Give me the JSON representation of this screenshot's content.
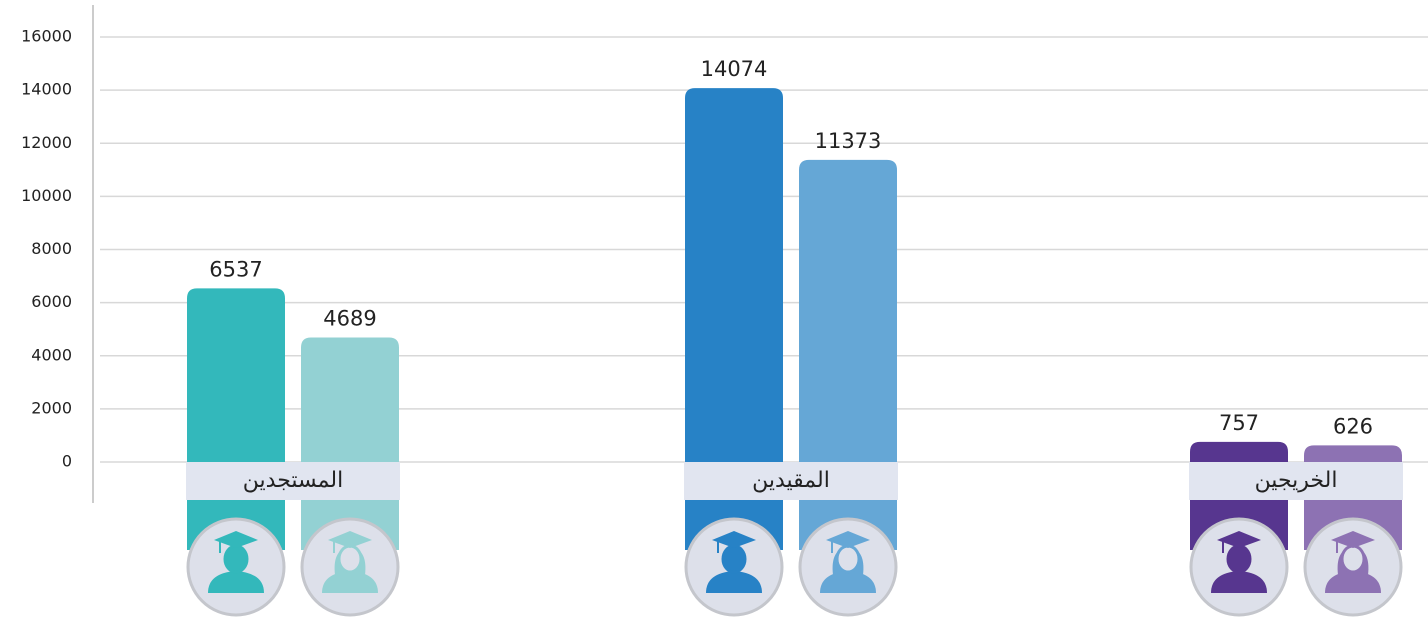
{
  "chart_data": {
    "type": "bar",
    "categories": [
      "المستجدين",
      "المقيدين",
      "الخريجين"
    ],
    "series": [
      {
        "colors": [
          "#33b8bb",
          "#2782c6",
          "#57368f"
        ],
        "values": [
          6537,
          14074,
          757
        ]
      },
      {
        "colors": [
          "#93d1d3",
          "#65a7d6",
          "#8d72b3"
        ],
        "values": [
          4689,
          11373,
          626
        ]
      }
    ],
    "ylim": [
      0,
      16000
    ],
    "yticks": [
      0,
      2000,
      4000,
      6000,
      8000,
      10000,
      12000,
      14000,
      16000
    ],
    "grid": true
  }
}
